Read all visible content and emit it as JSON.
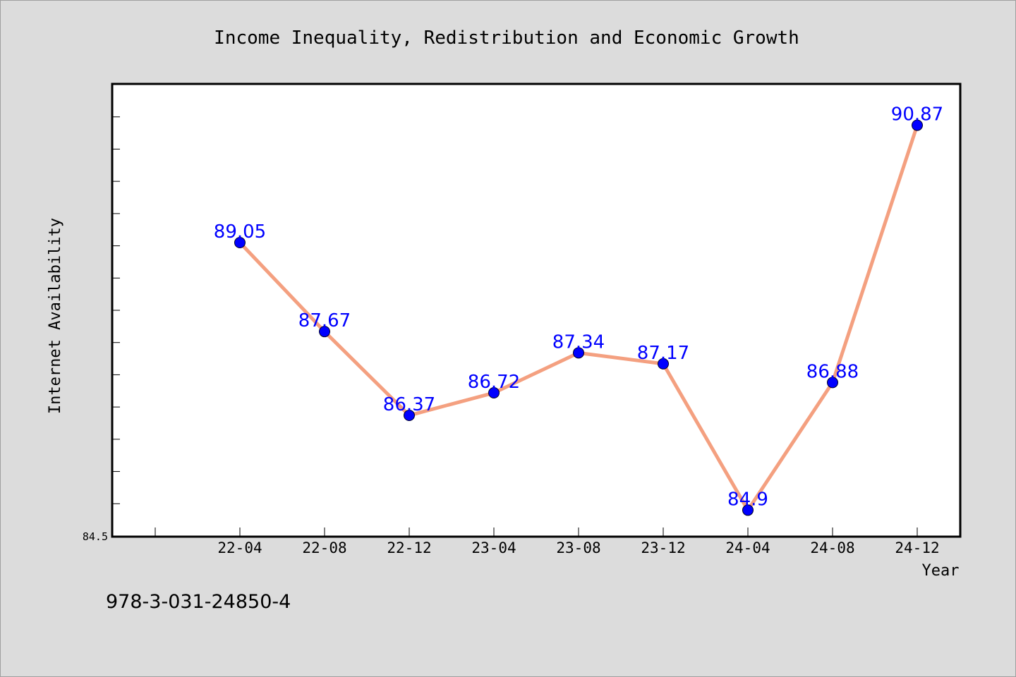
{
  "chart_data": {
    "type": "line",
    "title": "Income Inequality, Redistribution and Economic Growth",
    "xlabel": "Year",
    "ylabel": "Internet Availability",
    "categories": [
      "22-04",
      "22-08",
      "22-12",
      "23-04",
      "23-08",
      "23-12",
      "24-04",
      "24-08",
      "24-12"
    ],
    "series": [
      {
        "values": [
          89.05,
          87.67,
          86.37,
          86.72,
          87.34,
          87.17,
          84.9,
          86.88,
          90.87
        ],
        "labels": [
          "89.05",
          "87.67",
          "86.37",
          "86.72",
          "87.34",
          "87.17",
          "84.9",
          "86.88",
          "90.87"
        ]
      }
    ],
    "ylim": [
      84.5,
      91.5
    ],
    "yticks_labeled": [
      "84.5"
    ],
    "grid": false,
    "line_color": "#f4a080",
    "marker_color": "#0000ff",
    "label_color": "#0000ff",
    "panel_background": "#ffffff",
    "figure_background": "#dcdcdc"
  },
  "footer": {
    "isbn": "978-3-031-24850-4"
  }
}
